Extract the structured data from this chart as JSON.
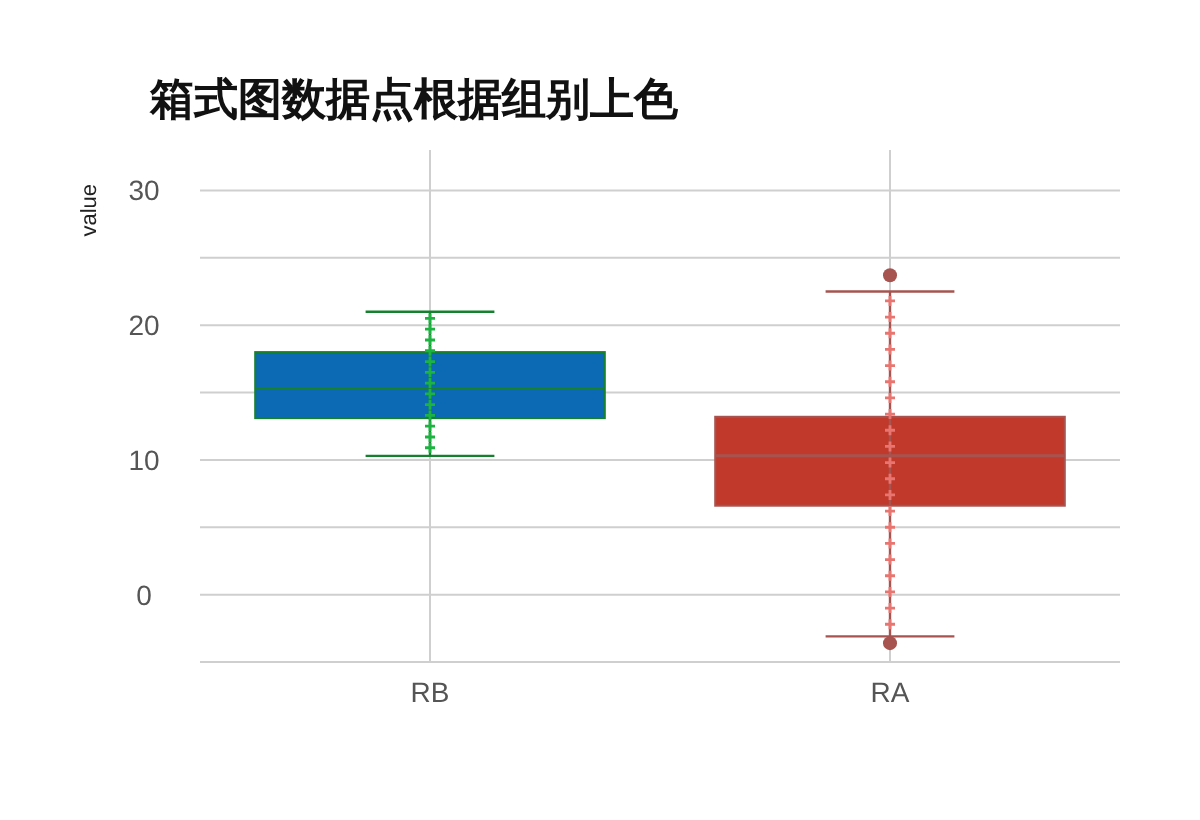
{
  "chart_data": {
    "type": "box",
    "title": "箱式图数据点根据组别上色",
    "ylabel": "value",
    "categories": [
      "RB",
      "RA"
    ],
    "ylim": [
      -5,
      33
    ],
    "yticks": [
      {
        "value": -5,
        "label": null
      },
      0,
      {
        "value": 5,
        "label": null
      },
      10,
      {
        "value": 15,
        "label": null
      },
      20,
      {
        "value": 25,
        "label": null
      },
      30
    ],
    "grid": true,
    "boxes": [
      {
        "low": 10.3,
        "q1": 13.1,
        "median": 15.3,
        "q3": 18,
        "high": 21
      },
      {
        "low": -3.1,
        "q1": 6.6,
        "median": 10.3,
        "q3": 13.2,
        "high": 22.5,
        "outliers": [
          23.7,
          -3.6
        ]
      }
    ],
    "colors": [
      "#0b6ab3",
      "#c0392b"
    ],
    "series": [
      {
        "type": "scatter",
        "color": "#1db341",
        "x": [
          "RB",
          "RB",
          "RB",
          "RB",
          "RB",
          "RB",
          "RB",
          "RB",
          "RB",
          "RB",
          "RB",
          "RB",
          "RB"
        ],
        "values": [
          10.9,
          11.7,
          12.5,
          13.3,
          14.1,
          14.9,
          15.7,
          16.5,
          17.3,
          18.1,
          18.9,
          19.7,
          20.5
        ]
      },
      {
        "type": "scatter",
        "color": "#e8756f",
        "x": [
          "RA",
          "RA",
          "RA",
          "RA",
          "RA",
          "RA",
          "RA",
          "RA",
          "RA",
          "RA",
          "RA",
          "RA",
          "RA",
          "RA",
          "RA",
          "RA",
          "RA",
          "RA",
          "RA",
          "RA",
          "RA"
        ],
        "values": [
          -2.2,
          -1,
          0.2,
          1.4,
          2.6,
          3.8,
          5,
          6.2,
          7.4,
          8.6,
          9.8,
          11,
          12.2,
          13.4,
          14.6,
          15.8,
          17,
          18.2,
          19.4,
          20.6,
          21.8
        ]
      }
    ]
  }
}
